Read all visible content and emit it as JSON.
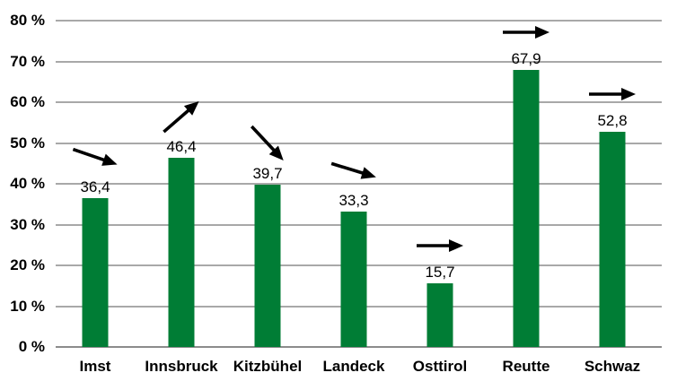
{
  "chart_data": {
    "type": "bar",
    "title": "",
    "xlabel": "",
    "ylabel": "",
    "categories": [
      "Imst",
      "Innsbruck",
      "Kitzbühel",
      "Landeck",
      "Osttirol",
      "Reutte",
      "Schwaz"
    ],
    "values": [
      36.4,
      46.4,
      39.7,
      33.3,
      15.7,
      67.9,
      52.8
    ],
    "value_labels": [
      "36,4",
      "46,4",
      "39,7",
      "33,3",
      "15,7",
      "67,9",
      "52,8"
    ],
    "decimal_separator": ",",
    "trend_arrows": [
      {
        "direction": "down-right",
        "angle_deg": 19
      },
      {
        "direction": "up-right",
        "angle_deg": -41
      },
      {
        "direction": "down-right",
        "angle_deg": 47
      },
      {
        "direction": "down-right",
        "angle_deg": 17
      },
      {
        "direction": "right",
        "angle_deg": 0
      },
      {
        "direction": "right",
        "angle_deg": 0
      },
      {
        "direction": "right",
        "angle_deg": 0
      }
    ],
    "ylim": [
      0,
      80
    ],
    "ytick_step": 10,
    "ytick_labels": [
      "0 %",
      "10 %",
      "20 %",
      "30 %",
      "40 %",
      "50 %",
      "60 %",
      "70 %",
      "80 %"
    ],
    "grid": true,
    "legend": false,
    "colors": {
      "bar": "#007d35",
      "gridline": "#a8a8a8",
      "axis_line": "#8c8c8c",
      "text": "#000000",
      "arrow": "#000000",
      "background": "#ffffff"
    }
  }
}
